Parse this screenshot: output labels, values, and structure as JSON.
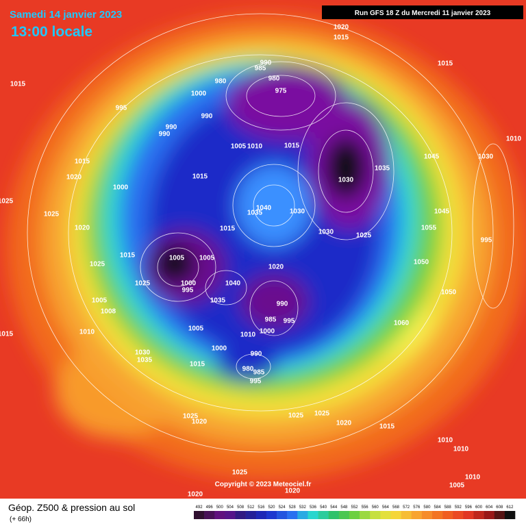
{
  "header": {
    "date": "Samedi 14 janvier 2023",
    "time": "13:00 locale",
    "run": "Run GFS 18 Z du Mercredi 11 janvier 2023"
  },
  "legend": {
    "title": "Géop. Z500 & pression au sol",
    "lead": "(+ 66h)",
    "ticks": [
      492,
      496,
      500,
      504,
      508,
      512,
      516,
      520,
      524,
      528,
      532,
      536,
      540,
      544,
      548,
      552,
      556,
      560,
      564,
      568,
      572,
      576,
      580,
      584,
      588,
      592,
      596,
      600,
      604,
      608,
      612
    ]
  },
  "copyright": "Copyright © 2023 Meteociel.fr",
  "pressure_labels": [
    1020,
    1015,
    1015,
    1015,
    990,
    985,
    980,
    980,
    975,
    1000,
    995,
    990,
    990,
    990,
    1005,
    1010,
    1015,
    1035,
    1045,
    1030,
    1010,
    1015,
    1020,
    1000,
    1015,
    1030,
    1040,
    1035,
    1030,
    1025,
    1025,
    1020,
    1015,
    1030,
    1025,
    1055,
    1045,
    995,
    1005,
    1005,
    1015,
    1025,
    1020,
    1050,
    1025,
    1000,
    995,
    1040,
    1035,
    990,
    1005,
    1008,
    1050,
    1060,
    985,
    995,
    1010,
    1015,
    1005,
    1010,
    1000,
    1030,
    1035,
    1000,
    990,
    1015,
    980,
    985,
    995,
    1025,
    1020,
    1025,
    1025,
    1020,
    1015,
    1010,
    1010,
    1025,
    1020,
    1020,
    1010,
    1005
  ]
}
